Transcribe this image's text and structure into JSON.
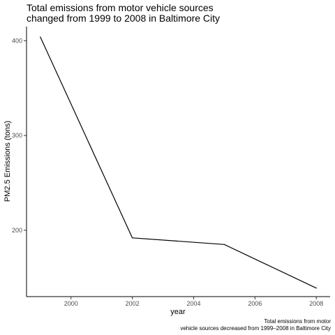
{
  "chart_data": {
    "type": "line",
    "title_lines": [
      "Total emissions from motor vehicle sources",
      "changed from 1999 to 2008 in Baltimore City"
    ],
    "xlabel": "year",
    "ylabel": "PM2.5 Emissions (tons)",
    "caption_lines": [
      "Total emissions from motor",
      "vehicle sources decreased from 1999–2008 in Baltimore City"
    ],
    "x": [
      1999,
      2002,
      2005,
      2008
    ],
    "values": [
      404,
      192,
      185,
      139
    ],
    "xlim": [
      1998.55,
      2008.45
    ],
    "ylim": [
      130,
      415
    ],
    "x_ticks": [
      2000,
      2002,
      2004,
      2006,
      2008
    ],
    "y_ticks": [
      200,
      300,
      400
    ],
    "x_tick_labels": [
      "2000",
      "2002",
      "2004",
      "2006",
      "2008"
    ],
    "y_tick_labels": [
      "200",
      "300",
      "400"
    ],
    "grid": false,
    "line_color": "#000000"
  }
}
